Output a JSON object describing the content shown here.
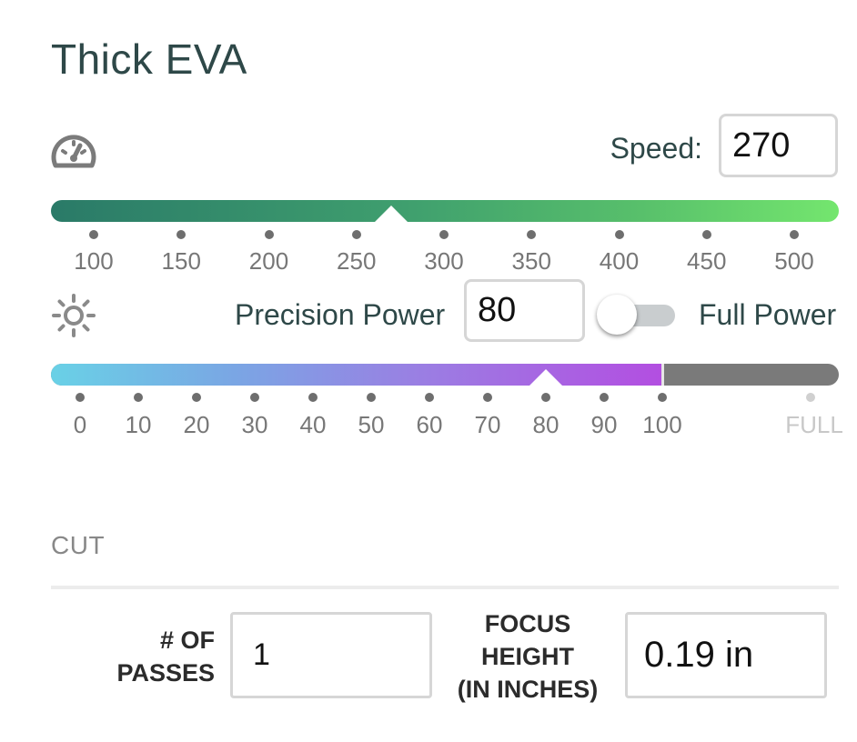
{
  "title": "Thick EVA",
  "speed": {
    "icon": "speedometer-icon",
    "label": "Speed:",
    "value": "270",
    "value_num": 270,
    "min": 100,
    "max": 520,
    "ticks": [
      "100",
      "150",
      "200",
      "250",
      "300",
      "350",
      "400",
      "450",
      "500"
    ]
  },
  "power": {
    "icon": "sun-icon",
    "label": "Precision Power",
    "value": "80",
    "value_num": 80,
    "full_power_label": "Full Power",
    "full_power_on": false,
    "ticks": [
      "0",
      "10",
      "20",
      "30",
      "40",
      "50",
      "60",
      "70",
      "80",
      "90",
      "100"
    ],
    "full_tick": "FULL"
  },
  "section": "CUT",
  "passes": {
    "label_lines": [
      "# OF",
      "PASSES"
    ],
    "value": "1"
  },
  "focus": {
    "label_lines": [
      "FOCUS",
      "HEIGHT",
      "(IN INCHES)"
    ],
    "value": "0.19 in"
  },
  "colors": {
    "speed_gradient": [
      "#2a7a68",
      "#74e66e"
    ],
    "power_gradient": [
      "#69d1e6",
      "#b34ee1"
    ],
    "power_full_track": "#7a7a7a"
  }
}
